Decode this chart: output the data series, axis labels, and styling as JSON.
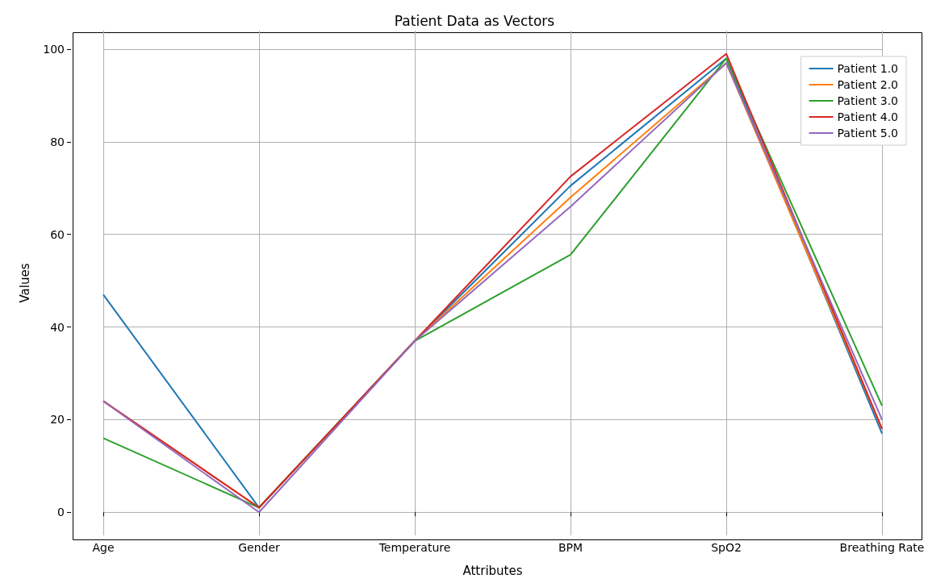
{
  "chart_data": {
    "type": "line",
    "title": "Patient Data as Vectors",
    "xlabel": "Attributes",
    "ylabel": "Values",
    "categories": [
      "Age",
      "Gender",
      "Temperature",
      "BPM",
      "SpO2",
      "Breathing Rate"
    ],
    "series": [
      {
        "name": "Patient 1.0",
        "color": "#1f77b4",
        "values": [
          47,
          1,
          37,
          70.5,
          98,
          17
        ]
      },
      {
        "name": "Patient 2.0",
        "color": "#ff7f0e",
        "values": [
          24,
          1,
          37,
          68,
          97,
          18
        ]
      },
      {
        "name": "Patient 3.0",
        "color": "#2ca02c",
        "values": [
          16,
          1,
          37,
          55.6,
          98,
          23
        ]
      },
      {
        "name": "Patient 4.0",
        "color": "#d62728",
        "values": [
          24,
          1,
          37,
          72.5,
          99,
          18
        ]
      },
      {
        "name": "Patient 5.0",
        "color": "#9467bd",
        "values": [
          24,
          0,
          37,
          66,
          97,
          20
        ]
      }
    ],
    "ylim": [
      -5,
      104
    ],
    "yticks": [
      0,
      20,
      40,
      60,
      80,
      100
    ],
    "grid": true,
    "legend": "top right",
    "marker": "none",
    "line_style": "solid"
  }
}
